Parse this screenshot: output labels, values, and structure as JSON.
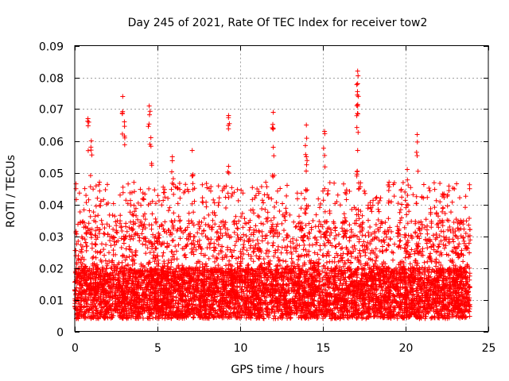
{
  "chart_data": {
    "type": "scatter",
    "title": "Day 245 of 2021, Rate Of TEC Index for receiver tow2",
    "xlabel": "GPS time / hours",
    "ylabel": "ROTI / TECUs",
    "xlim": [
      0,
      25
    ],
    "ylim": [
      0,
      0.09
    ],
    "xticks": [
      "0",
      "5",
      "10",
      "15",
      "20",
      "25"
    ],
    "yticks": [
      "0",
      "0.01",
      "0.02",
      "0.03",
      "0.04",
      "0.05",
      "0.06",
      "0.07",
      "0.08",
      "0.09"
    ],
    "grid": true,
    "marker": "+",
    "color": "#ff0000",
    "data_span_hours": [
      0,
      23.9
    ],
    "typical_range": [
      0.004,
      0.02
    ],
    "notable_spikes": [
      {
        "x": 0.8,
        "y": 0.067
      },
      {
        "x": 1.0,
        "y": 0.06
      },
      {
        "x": 2.9,
        "y": 0.074
      },
      {
        "x": 3.0,
        "y": 0.066
      },
      {
        "x": 4.5,
        "y": 0.071
      },
      {
        "x": 4.6,
        "y": 0.061
      },
      {
        "x": 5.9,
        "y": 0.055
      },
      {
        "x": 7.1,
        "y": 0.057
      },
      {
        "x": 9.3,
        "y": 0.068
      },
      {
        "x": 9.3,
        "y": 0.052
      },
      {
        "x": 12.0,
        "y": 0.069
      },
      {
        "x": 12.0,
        "y": 0.058
      },
      {
        "x": 14.0,
        "y": 0.065
      },
      {
        "x": 14.0,
        "y": 0.055
      },
      {
        "x": 15.1,
        "y": 0.063
      },
      {
        "x": 17.1,
        "y": 0.082
      },
      {
        "x": 17.1,
        "y": 0.078
      },
      {
        "x": 17.1,
        "y": 0.071
      },
      {
        "x": 17.1,
        "y": 0.057
      },
      {
        "x": 19.0,
        "y": 0.047
      },
      {
        "x": 20.7,
        "y": 0.062
      },
      {
        "x": 20.1,
        "y": 0.051
      },
      {
        "x": 22.3,
        "y": 0.043
      }
    ]
  }
}
